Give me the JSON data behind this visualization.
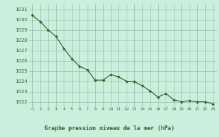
{
  "x": [
    0,
    1,
    2,
    3,
    4,
    5,
    6,
    7,
    8,
    9,
    10,
    11,
    12,
    13,
    14,
    15,
    16,
    17,
    18,
    19,
    20,
    21,
    22,
    23
  ],
  "y": [
    1030.4,
    1029.8,
    1029.0,
    1028.35,
    1027.2,
    1026.2,
    1025.45,
    1025.1,
    1024.1,
    1024.1,
    1024.65,
    1024.4,
    1024.0,
    1023.95,
    1023.55,
    1023.05,
    1022.45,
    1022.8,
    1022.2,
    1022.0,
    1022.1,
    1022.0,
    1022.0,
    1021.8
  ],
  "line_color": "#2d6a2d",
  "marker_color": "#2d6a2d",
  "bg_color": "#cceedd",
  "grid_color": "#aaccbb",
  "ylabel_ticks": [
    1022,
    1023,
    1024,
    1025,
    1026,
    1027,
    1028,
    1029,
    1030,
    1031
  ],
  "xlabel": "Graphe pression niveau de la mer (hPa)",
  "xlabel_color": "#2d6a2d",
  "label_bar_color": "#004400",
  "label_text_color": "#2d6a2d",
  "ylim": [
    1021.5,
    1031.5
  ],
  "xlim": [
    -0.5,
    23.5
  ],
  "tick_label_color": "#2d5a2d",
  "grid_major_color": "#99bbaa"
}
